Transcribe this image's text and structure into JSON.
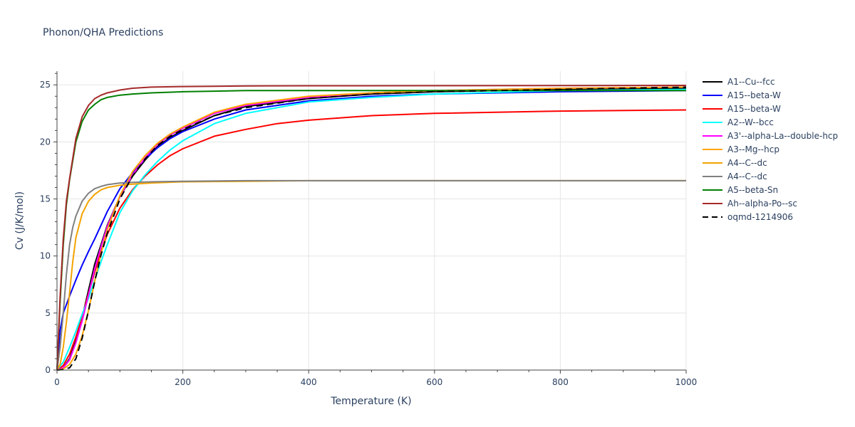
{
  "chart_data": {
    "type": "line",
    "title": "Phonon/QHA Predictions",
    "xlabel": "Temperature (K)",
    "ylabel": "Cv (J/K/mol)",
    "xlim": [
      0,
      1000
    ],
    "ylim": [
      0,
      26.2
    ],
    "xticks": [
      0,
      200,
      400,
      600,
      800,
      1000
    ],
    "yticks": [
      0,
      5,
      10,
      15,
      20,
      25
    ],
    "grid": true,
    "legend_position": "right",
    "series": [
      {
        "name": "A1--Cu--fcc",
        "color": "#000000",
        "dash": "solid",
        "x": [
          0,
          10,
          20,
          30,
          40,
          50,
          60,
          70,
          80,
          100,
          120,
          140,
          160,
          180,
          200,
          250,
          300,
          400,
          500,
          600,
          800,
          1000
        ],
        "y": [
          0,
          0.2,
          1.0,
          2.6,
          4.6,
          7.0,
          9.3,
          11.0,
          12.7,
          15.2,
          17.0,
          18.4,
          19.6,
          20.4,
          21.0,
          22.3,
          23.1,
          23.8,
          24.2,
          24.4,
          24.6,
          24.7
        ]
      },
      {
        "name": "A15--beta-W",
        "color": "#0000ff",
        "dash": "solid",
        "x": [
          0,
          5,
          10,
          20,
          30,
          40,
          50,
          60,
          80,
          100,
          120,
          140,
          160,
          180,
          200,
          250,
          300,
          400,
          500,
          600,
          800,
          1000
        ],
        "y": [
          0,
          3.5,
          5.0,
          6.5,
          7.9,
          9.2,
          10.4,
          11.5,
          13.9,
          15.9,
          17.3,
          18.5,
          19.5,
          20.3,
          20.9,
          22.0,
          22.8,
          23.6,
          24.0,
          24.2,
          24.4,
          24.5
        ]
      },
      {
        "name": "A15--beta-W",
        "color": "#ff0000",
        "dash": "solid",
        "x": [
          0,
          10,
          20,
          30,
          40,
          50,
          60,
          70,
          80,
          100,
          120,
          140,
          160,
          180,
          200,
          250,
          300,
          350,
          400,
          500,
          600,
          800,
          1000
        ],
        "y": [
          0,
          0.4,
          1.4,
          2.9,
          4.7,
          6.7,
          8.6,
          10.4,
          11.9,
          14.2,
          15.8,
          17.0,
          18.0,
          18.8,
          19.4,
          20.5,
          21.1,
          21.6,
          21.9,
          22.3,
          22.5,
          22.7,
          22.8
        ]
      },
      {
        "name": "A2--W--bcc",
        "color": "#00ffff",
        "dash": "solid",
        "x": [
          0,
          10,
          20,
          30,
          40,
          50,
          60,
          70,
          80,
          100,
          120,
          140,
          160,
          180,
          200,
          250,
          300,
          400,
          500,
          600,
          800,
          1000
        ],
        "y": [
          0,
          0.7,
          2.0,
          3.4,
          4.9,
          6.3,
          7.9,
          9.5,
          11.0,
          13.8,
          15.7,
          17.1,
          18.3,
          19.3,
          20.1,
          21.6,
          22.5,
          23.5,
          23.9,
          24.2,
          24.5,
          24.6
        ]
      },
      {
        "name": "A3'--alpha-La--double-hcp",
        "color": "#ff00ff",
        "dash": "solid",
        "x": [
          0,
          10,
          20,
          30,
          40,
          50,
          60,
          70,
          80,
          100,
          120,
          140,
          160,
          180,
          200,
          250,
          300,
          400,
          500,
          600,
          800,
          1000
        ],
        "y": [
          0,
          0.2,
          0.9,
          2.4,
          4.3,
          6.6,
          8.9,
          10.8,
          12.6,
          15.2,
          17.1,
          18.6,
          19.8,
          20.6,
          21.2,
          22.5,
          23.2,
          23.9,
          24.3,
          24.5,
          24.7,
          24.8
        ]
      },
      {
        "name": "A3--Mg--hcp",
        "color": "#ffa500",
        "dash": "solid",
        "x": [
          0,
          10,
          20,
          30,
          40,
          50,
          60,
          70,
          80,
          100,
          120,
          140,
          160,
          180,
          200,
          250,
          300,
          400,
          500,
          600,
          800,
          1000
        ],
        "y": [
          0,
          0.1,
          0.5,
          1.4,
          3.0,
          5.2,
          7.8,
          10.2,
          12.3,
          15.3,
          17.4,
          18.8,
          19.9,
          20.7,
          21.3,
          22.6,
          23.3,
          24.0,
          24.3,
          24.5,
          24.7,
          24.8
        ]
      },
      {
        "name": "A4--C--dc",
        "color": "#f4a300",
        "dash": "solid",
        "x": [
          0,
          5,
          10,
          15,
          20,
          25,
          30,
          40,
          50,
          60,
          70,
          80,
          100,
          120,
          150,
          200,
          300,
          400,
          600,
          800,
          1000
        ],
        "y": [
          0,
          0.5,
          2.0,
          4.2,
          6.8,
          9.5,
          11.6,
          13.7,
          14.8,
          15.4,
          15.8,
          16.0,
          16.2,
          16.3,
          16.4,
          16.5,
          16.55,
          16.6,
          16.6,
          16.6,
          16.6
        ]
      },
      {
        "name": "A4--C--dc",
        "color": "#808080",
        "dash": "solid",
        "x": [
          0,
          5,
          10,
          15,
          20,
          25,
          30,
          40,
          50,
          60,
          70,
          80,
          100,
          120,
          150,
          200,
          300,
          400,
          600,
          800,
          1000
        ],
        "y": [
          0,
          2.0,
          5.0,
          8.4,
          11.0,
          12.5,
          13.5,
          14.8,
          15.5,
          15.9,
          16.1,
          16.25,
          16.4,
          16.45,
          16.5,
          16.55,
          16.6,
          16.6,
          16.6,
          16.6,
          16.6
        ]
      },
      {
        "name": "A5--beta-Sn",
        "color": "#008000",
        "dash": "solid",
        "x": [
          0,
          5,
          10,
          15,
          20,
          30,
          40,
          50,
          60,
          70,
          80,
          100,
          120,
          150,
          200,
          250,
          300,
          400,
          600,
          800,
          1000
        ],
        "y": [
          0,
          6.0,
          11.0,
          14.5,
          16.7,
          20.0,
          21.8,
          22.8,
          23.3,
          23.7,
          23.9,
          24.1,
          24.2,
          24.3,
          24.4,
          24.45,
          24.5,
          24.5,
          24.5,
          24.5,
          24.5
        ]
      },
      {
        "name": "Ah--alpha-Po--sc",
        "color": "#a52a2a",
        "dash": "solid",
        "x": [
          0,
          5,
          10,
          15,
          20,
          30,
          40,
          50,
          60,
          70,
          80,
          100,
          120,
          150,
          200,
          250,
          300,
          400,
          600,
          800,
          1000
        ],
        "y": [
          0,
          6.5,
          11.5,
          14.8,
          16.8,
          20.3,
          22.2,
          23.2,
          23.8,
          24.1,
          24.3,
          24.55,
          24.7,
          24.8,
          24.85,
          24.88,
          24.9,
          24.92,
          24.93,
          24.94,
          24.95
        ]
      },
      {
        "name": "oqmd-1214906",
        "color": "#000000",
        "dash": "dash",
        "x": [
          0,
          10,
          20,
          30,
          40,
          50,
          60,
          70,
          80,
          100,
          120,
          140,
          160,
          180,
          200,
          250,
          300,
          400,
          500,
          600,
          800,
          1000
        ],
        "y": [
          0,
          0.05,
          0.2,
          1.0,
          2.8,
          5.2,
          7.8,
          10.1,
          12.0,
          15.0,
          17.0,
          18.5,
          19.7,
          20.5,
          21.1,
          22.3,
          23.0,
          23.8,
          24.2,
          24.4,
          24.6,
          24.8
        ]
      }
    ]
  }
}
